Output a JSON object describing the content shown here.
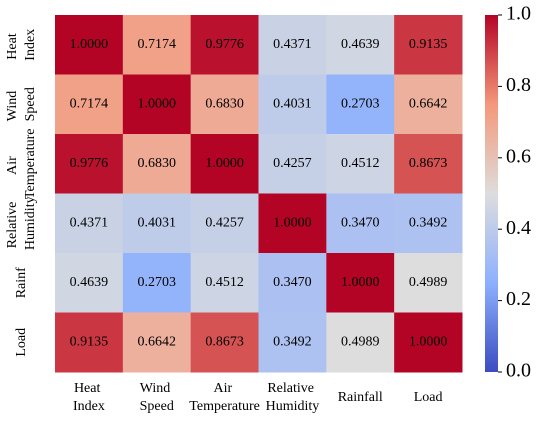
{
  "chart_data": {
    "type": "heatmap",
    "x_categories": [
      "Heat Index",
      "Wind Speed",
      "Air Temperature",
      "Relative Humidity",
      "Rainfall",
      "Load"
    ],
    "y_categories": [
      "Heat Index",
      "Wind Speed",
      "Air Temperature",
      "Relative Humidity",
      "Rainf",
      "Load"
    ],
    "values": [
      [
        1.0,
        0.7174,
        0.9776,
        0.4371,
        0.4639,
        0.9135
      ],
      [
        0.7174,
        1.0,
        0.683,
        0.4031,
        0.2703,
        0.6642
      ],
      [
        0.9776,
        0.683,
        1.0,
        0.4257,
        0.4512,
        0.8673
      ],
      [
        0.4371,
        0.4031,
        0.4257,
        1.0,
        0.347,
        0.3492
      ],
      [
        0.4639,
        0.2703,
        0.4512,
        0.347,
        1.0,
        0.4989
      ],
      [
        0.9135,
        0.6642,
        0.8673,
        0.3492,
        0.4989,
        1.0
      ]
    ],
    "value_labels": [
      [
        "1.0000",
        "0.7174",
        "0.9776",
        "0.4371",
        "0.4639",
        "0.9135"
      ],
      [
        "0.7174",
        "1.0000",
        "0.6830",
        "0.4031",
        "0.2703",
        "0.6642"
      ],
      [
        "0.9776",
        "0.6830",
        "1.0000",
        "0.4257",
        "0.4512",
        "0.8673"
      ],
      [
        "0.4371",
        "0.4031",
        "0.4257",
        "1.0000",
        "0.3470",
        "0.3492"
      ],
      [
        "0.4639",
        "0.2703",
        "0.4512",
        "0.3470",
        "1.0000",
        "0.4989"
      ],
      [
        "0.9135",
        "0.6642",
        "0.8673",
        "0.3492",
        "0.4989",
        "1.0000"
      ]
    ],
    "colormap": [
      "#3b4cc0",
      "#8db0fe",
      "#dddddd",
      "#f4987a",
      "#b40426"
    ],
    "clim": [
      0,
      1
    ],
    "cticks": [
      {
        "value": 0,
        "label": "0.0"
      },
      {
        "value": 0.2,
        "label": "0.2"
      },
      {
        "value": 0.4,
        "label": "0.4"
      },
      {
        "value": 0.6,
        "label": "0.6"
      },
      {
        "value": 0.8,
        "label": "0.8"
      },
      {
        "value": 1,
        "label": "1.0"
      }
    ]
  }
}
